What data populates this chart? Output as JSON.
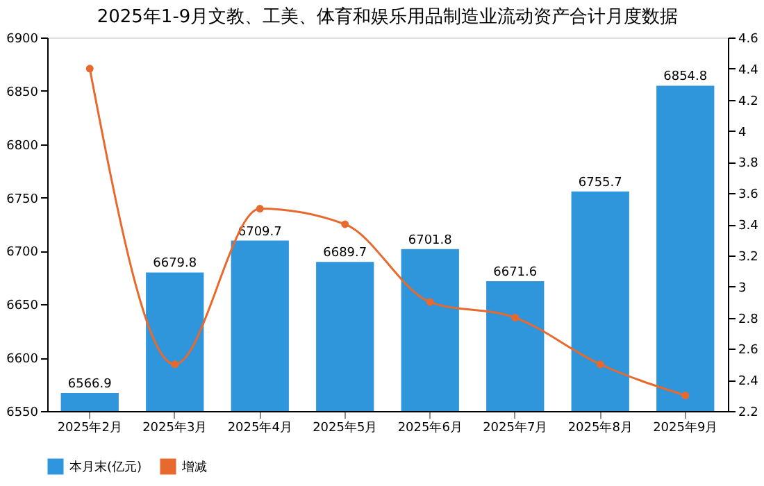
{
  "chart_data": {
    "type": "bar",
    "title": "2025年1-9月文教、工美、体育和娱乐用品制造业流动资产合计月度数据",
    "categories": [
      "2025年2月",
      "2025年3月",
      "2025年4月",
      "2025年5月",
      "2025年6月",
      "2025年7月",
      "2025年8月",
      "2025年9月"
    ],
    "series": [
      {
        "name": "本月末(亿元)",
        "color": "#3096dc",
        "values": [
          6566.9,
          6679.8,
          6709.7,
          6689.7,
          6701.8,
          6671.6,
          6755.7,
          6854.8
        ],
        "value_labels": [
          "6566.9",
          "6679.8",
          "6709.7",
          "6689.7",
          "6701.8",
          "6671.6",
          "6755.7",
          "6854.8"
        ]
      },
      {
        "name": "增减",
        "type": "line",
        "axis": "y2",
        "color": "#e8692e",
        "values": [
          4.4,
          2.5,
          3.5,
          3.4,
          2.9,
          2.8,
          2.5,
          2.3
        ]
      }
    ],
    "marker": "circle",
    "ylim": [
      6550,
      6900
    ],
    "yticks": [
      6550,
      6600,
      6650,
      6700,
      6750,
      6800,
      6850,
      6900
    ],
    "y2lim": [
      2.2,
      4.6
    ],
    "y2ticks": [
      2.2,
      2.4,
      2.6,
      2.8,
      3,
      3.2,
      3.4,
      3.6,
      3.8,
      4,
      4.2,
      4.4,
      4.6
    ],
    "grid": false,
    "legend": "bottom left"
  }
}
